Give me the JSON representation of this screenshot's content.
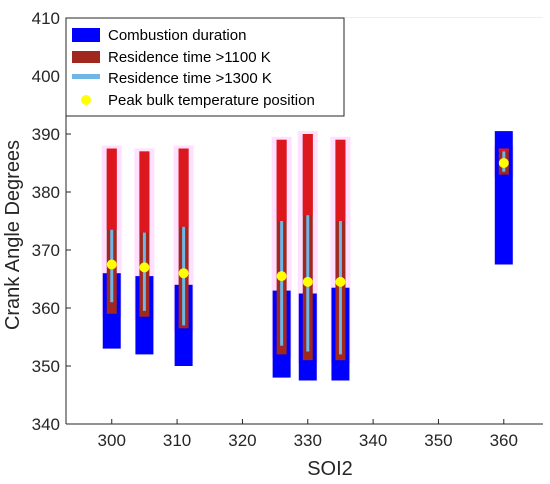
{
  "chart_data": {
    "type": "range-bar",
    "xlabel": "SOI2",
    "ylabel": "Crank Angle Degrees",
    "xlim": [
      293,
      366
    ],
    "ylim": [
      340,
      410
    ],
    "xticks": [
      300,
      310,
      320,
      330,
      340,
      350,
      360
    ],
    "yticks": [
      340,
      350,
      360,
      370,
      380,
      390,
      400,
      410
    ],
    "grid": true,
    "legend_position": "top-left",
    "legend": [
      {
        "key": "combustion",
        "label": "Combustion duration",
        "color": "#0000ff"
      },
      {
        "key": "res1100",
        "label": "Residence time >1100 K",
        "color": "#a0281e"
      },
      {
        "key": "res1300",
        "label": "Residence time >1300 K",
        "color": "#6fb5e6"
      },
      {
        "key": "peak",
        "label": "Peak bulk temperature position",
        "color": "#ffff00"
      }
    ],
    "series": [
      {
        "soi2": 300,
        "combustion": [
          353,
          366
        ],
        "res1100": [
          359,
          387.5
        ],
        "res1300": [
          361,
          373.5
        ],
        "peak": 367.5
      },
      {
        "soi2": 305,
        "combustion": [
          352,
          365.5
        ],
        "res1100": [
          358.5,
          387
        ],
        "res1300": [
          359.5,
          373
        ],
        "peak": 367
      },
      {
        "soi2": 311,
        "combustion": [
          350,
          364
        ],
        "res1100": [
          356.5,
          387.5
        ],
        "res1300": [
          357,
          374
        ],
        "peak": 366
      },
      {
        "soi2": 326,
        "combustion": [
          348,
          363
        ],
        "res1100": [
          352,
          389
        ],
        "res1300": [
          353.5,
          375
        ],
        "peak": 365.5
      },
      {
        "soi2": 330,
        "combustion": [
          347.5,
          362.5
        ],
        "res1100": [
          351,
          390
        ],
        "res1300": [
          352.5,
          376
        ],
        "peak": 364.5
      },
      {
        "soi2": 335,
        "combustion": [
          347.5,
          363.5
        ],
        "res1100": [
          351,
          389
        ],
        "res1300": [
          352,
          375
        ],
        "peak": 364.5
      },
      {
        "soi2": 360,
        "combustion": [
          367.5,
          390.5
        ],
        "res1100": [
          383,
          387.5
        ],
        "res1300": [
          383.5,
          387
        ],
        "peak": 385
      }
    ]
  }
}
